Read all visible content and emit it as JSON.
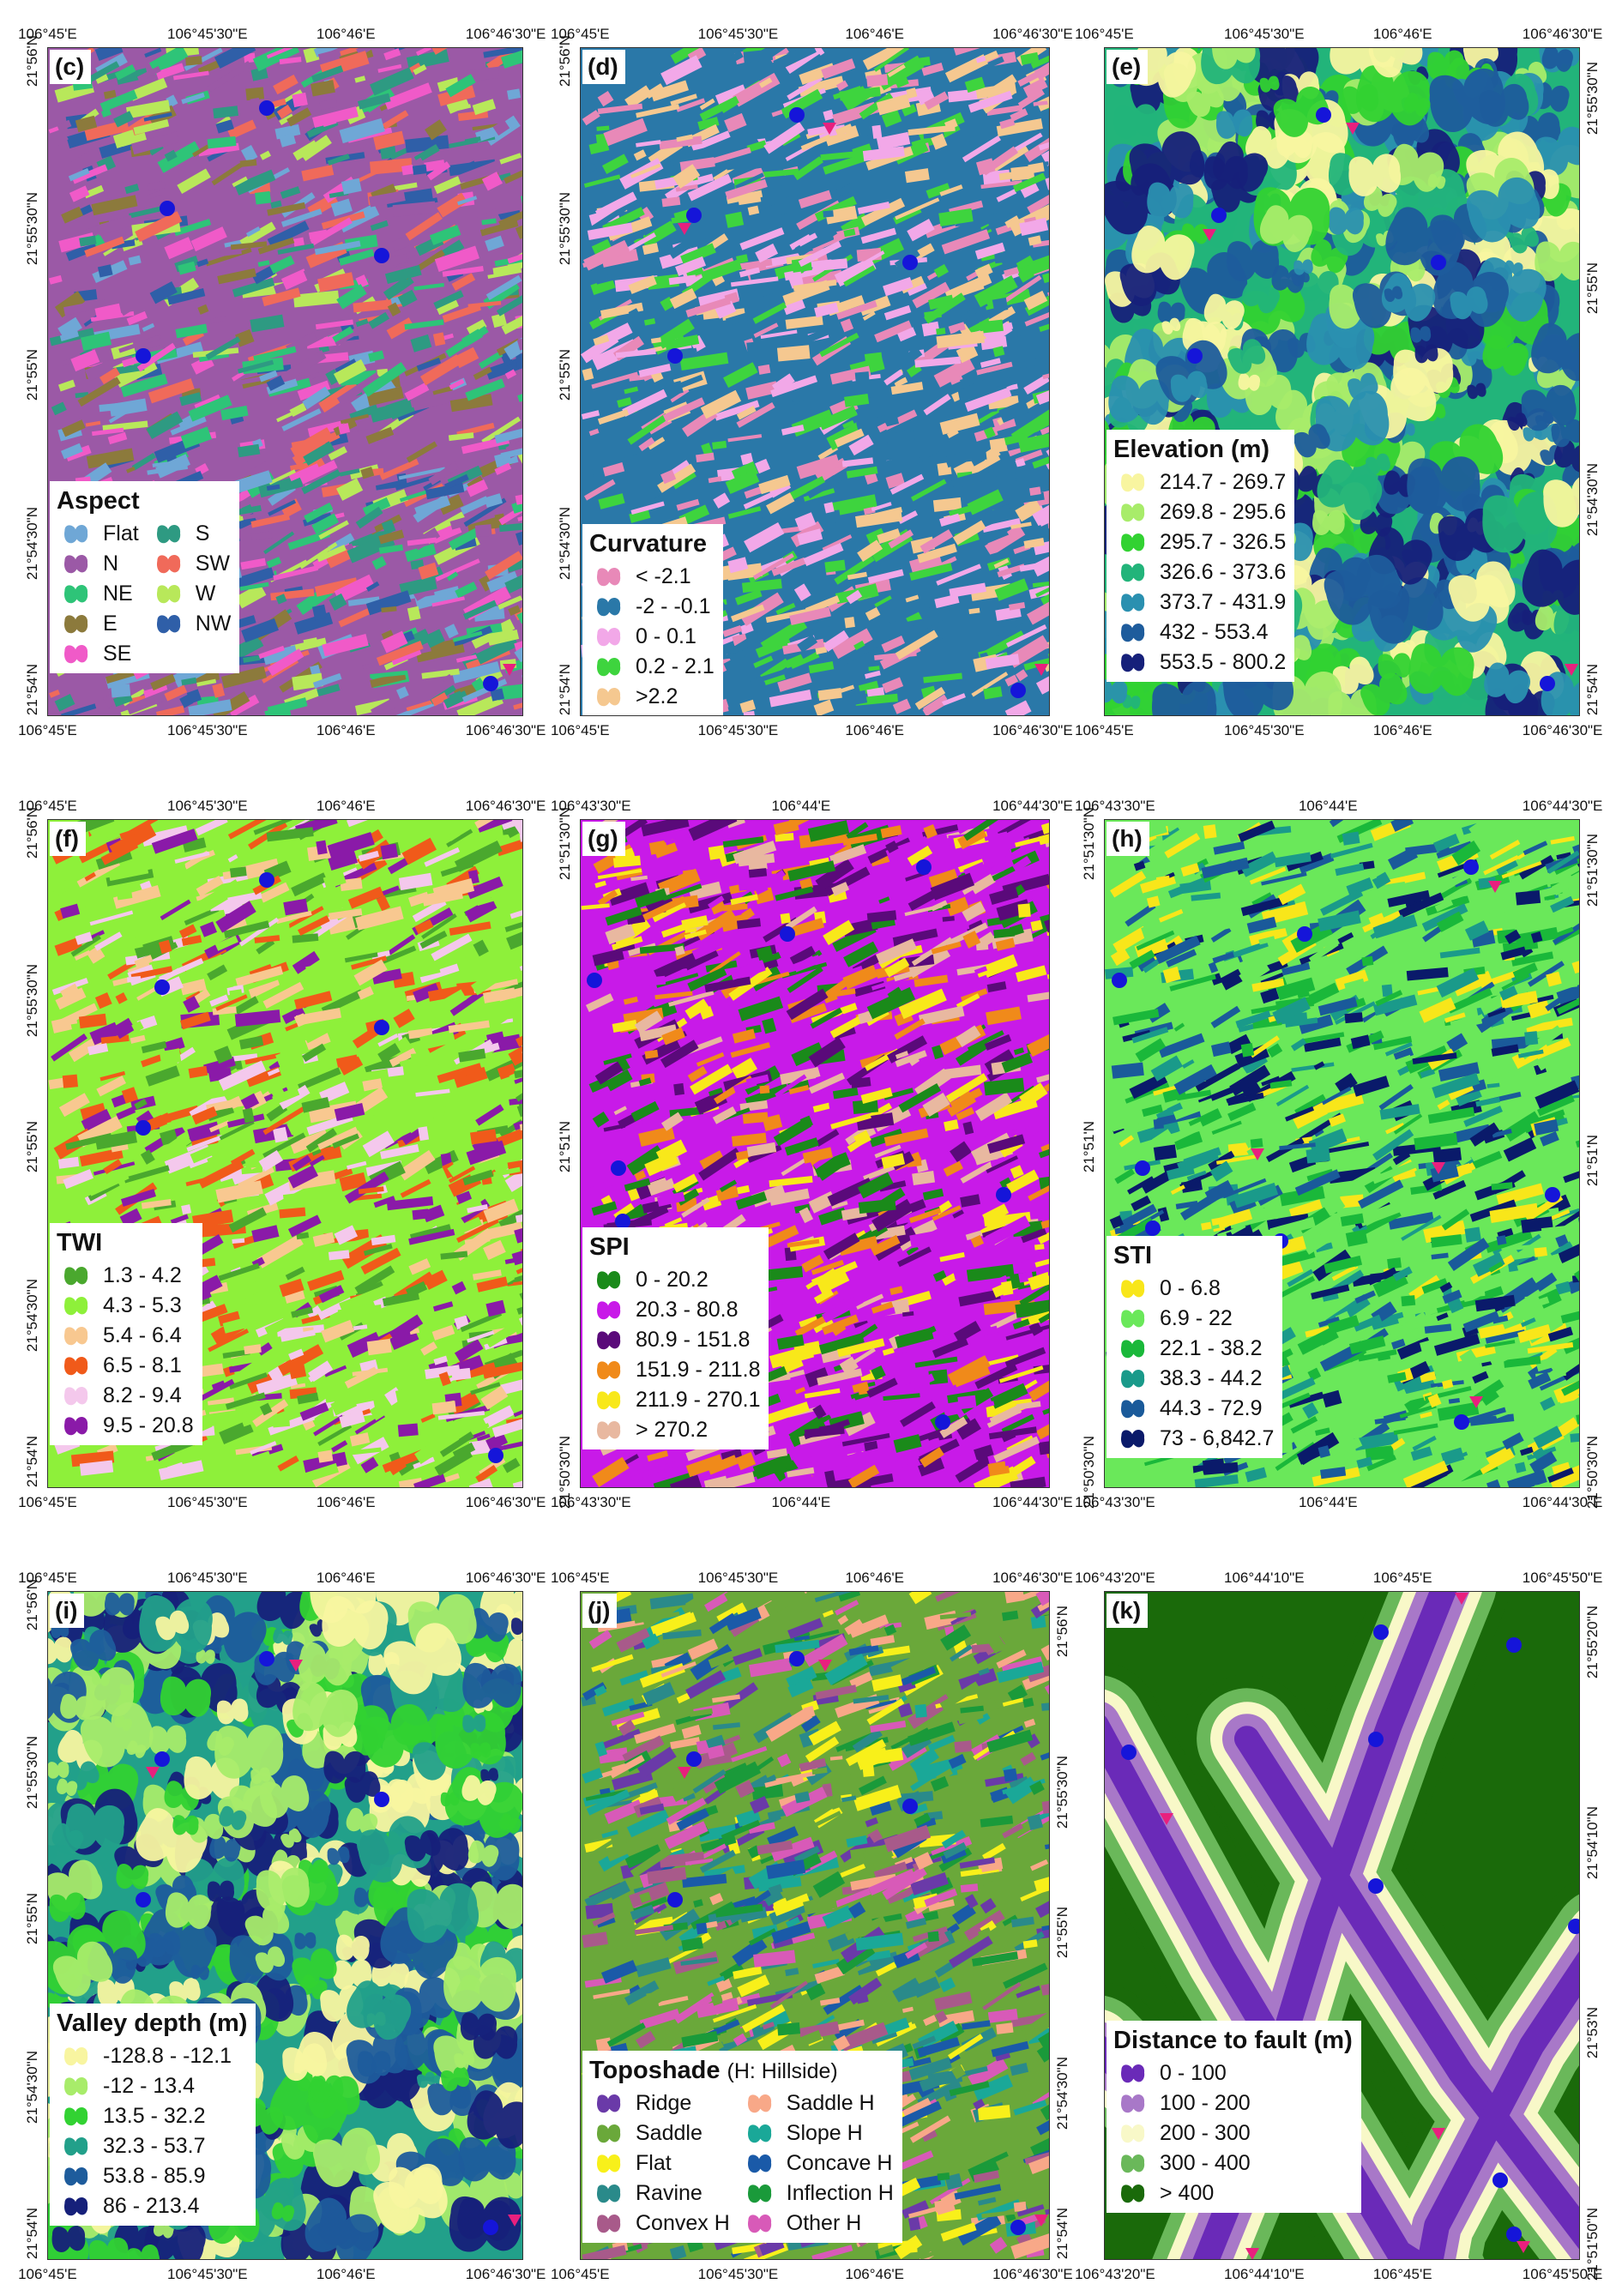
{
  "figure": {
    "points": {
      "count_marker_color": "#1515d9",
      "triangle_marker_color": "#e8207e"
    },
    "panels": [
      {
        "id": "c",
        "label": "(c)",
        "legend_title": "Aspect",
        "legend_sub": "",
        "cols": 2,
        "classes": [
          {
            "label": "Flat",
            "color": "#6fa7d6"
          },
          {
            "label": "N",
            "color": "#9b59a6"
          },
          {
            "label": "NE",
            "color": "#2ec478"
          },
          {
            "label": "E",
            "color": "#8c7a3c"
          },
          {
            "label": "SE",
            "color": "#f05ac8"
          },
          {
            "label": "S",
            "color": "#2e9a82"
          },
          {
            "label": "SW",
            "color": "#f06a5a"
          },
          {
            "label": "W",
            "color": "#b8e85a"
          },
          {
            "label": "NW",
            "color": "#2f5fa8"
          }
        ],
        "top_ticks": [
          "106°45'E",
          "106°45'30\"E",
          "106°46'E",
          "106°46'30\"E"
        ],
        "bottom_ticks": [
          "106°45'E",
          "106°45'30\"E",
          "106°46'E",
          "106°46'30\"E"
        ],
        "left_ticks": [
          "21°56'N",
          "21°55'30\"N",
          "21°55'N",
          "21°54'30\"N",
          "21°54'N"
        ],
        "right_ticks": [],
        "style": "speckle"
      },
      {
        "id": "d",
        "label": "(d)",
        "legend_title": "Curvature",
        "legend_sub": "",
        "cols": 1,
        "classes": [
          {
            "label": "< -2.1",
            "color": "#e889b8"
          },
          {
            "label": "-2 - -0.1",
            "color": "#2a78a8"
          },
          {
            "label": "0 - 0.1",
            "color": "#f2a8e8"
          },
          {
            "label": "0.2 - 2.1",
            "color": "#3ed43e"
          },
          {
            "label": ">2.2",
            "color": "#f5c890"
          }
        ],
        "top_ticks": [
          "106°45'E",
          "106°45'30\"E",
          "106°46'E",
          "106°46'30\"E"
        ],
        "bottom_ticks": [
          "106°45'E",
          "106°45'30\"E",
          "106°46'E",
          "106°46'30\"E"
        ],
        "left_ticks": [
          "21°56'N",
          "21°55'30\"N",
          "21°55'N",
          "21°54'30\"N",
          "21°54'N"
        ],
        "right_ticks": [],
        "style": "speckle"
      },
      {
        "id": "e",
        "label": "(e)",
        "legend_title": "Elevation (m)",
        "legend_sub": "",
        "cols": 1,
        "classes": [
          {
            "label": "214.7 - 269.7",
            "color": "#f8f5a0"
          },
          {
            "label": "269.8 - 295.6",
            "color": "#a8ec6a"
          },
          {
            "label": "295.7 - 326.5",
            "color": "#32d232"
          },
          {
            "label": "326.6 - 373.6",
            "color": "#22b47a"
          },
          {
            "label": "373.7 - 431.9",
            "color": "#2a90b0"
          },
          {
            "label": "432 - 553.4",
            "color": "#1e5c9c"
          },
          {
            "label": "553.5 - 800.2",
            "color": "#16207a"
          }
        ],
        "top_ticks": [
          "106°45'E",
          "106°45'30\"E",
          "106°46'E",
          "106°46'30\"E"
        ],
        "bottom_ticks": [
          "106°45'E",
          "106°45'30\"E",
          "106°46'E",
          "106°46'30\"E"
        ],
        "left_ticks": [],
        "right_ticks": [
          "21°55'30\"N",
          "21°55'N",
          "21°54'30\"N",
          "21°54'N"
        ],
        "style": "smooth"
      },
      {
        "id": "f",
        "label": "(f)",
        "legend_title": "TWI",
        "legend_sub": "",
        "cols": 1,
        "classes": [
          {
            "label": "1.3 - 4.2",
            "color": "#4aa82e"
          },
          {
            "label": "4.3 - 5.3",
            "color": "#8ef03a"
          },
          {
            "label": "5.4 - 6.4",
            "color": "#f8c890"
          },
          {
            "label": "6.5 - 8.1",
            "color": "#f05a1a"
          },
          {
            "label": "8.2 - 9.4",
            "color": "#f4c8ec"
          },
          {
            "label": "9.5 - 20.8",
            "color": "#8a1aa8"
          }
        ],
        "top_ticks": [
          "106°45'E",
          "106°45'30\"E",
          "106°46'E",
          "106°46'30\"E"
        ],
        "bottom_ticks": [
          "106°45'E",
          "106°45'30\"E",
          "106°46'E",
          "106°46'30\"E"
        ],
        "left_ticks": [
          "21°56'N",
          "21°55'30\"N",
          "21°55'N",
          "21°54'30\"N",
          "21°54'N"
        ],
        "right_ticks": [],
        "style": "speckle"
      },
      {
        "id": "g",
        "label": "(g)",
        "legend_title": "SPI",
        "legend_sub": "",
        "cols": 1,
        "classes": [
          {
            "label": "0 - 20.2",
            "color": "#1a8a1a"
          },
          {
            "label": "20.3 - 80.8",
            "color": "#c81ae8"
          },
          {
            "label": "80.9 - 151.8",
            "color": "#5a0a7a"
          },
          {
            "label": "151.9 - 211.8",
            "color": "#f08a1a"
          },
          {
            "label": "211.9 - 270.1",
            "color": "#f8e81a"
          },
          {
            "label": "> 270.2",
            "color": "#e8b8a0"
          }
        ],
        "top_ticks": [
          "106°43'30\"E",
          "106°44'E",
          "106°44'30\"E"
        ],
        "bottom_ticks": [
          "106°43'30\"E",
          "106°44'E",
          "106°44'30\"E"
        ],
        "left_ticks": [
          "21°51'30\"N",
          "21°51'N",
          "21°50'30\"N"
        ],
        "right_ticks": [],
        "style": "speckle"
      },
      {
        "id": "h",
        "label": "(h)",
        "legend_title": "STI",
        "legend_sub": "",
        "cols": 1,
        "classes": [
          {
            "label": "0 - 6.8",
            "color": "#f8e61a"
          },
          {
            "label": "6.9 - 22",
            "color": "#6ae85a"
          },
          {
            "label": "22.1 - 38.2",
            "color": "#1ab83a"
          },
          {
            "label": "38.3 - 44.2",
            "color": "#1a9a8a"
          },
          {
            "label": "44.3 - 72.9",
            "color": "#1a5a9a"
          },
          {
            "label": "73 - 6,842.7",
            "color": "#0a1a6a"
          }
        ],
        "top_ticks": [
          "106°43'30\"E",
          "106°44'E",
          "106°44'30\"E"
        ],
        "bottom_ticks": [
          "106°43'30\"E",
          "106°44'E",
          "106°44'30\"E"
        ],
        "left_ticks": [
          "21°51'30\"N",
          "21°51'N",
          "21°50'30\"N"
        ],
        "right_ticks": [
          "21°51'30\"N",
          "21°51'N",
          "21°50'30\"N"
        ],
        "style": "speckle"
      },
      {
        "id": "i",
        "label": "(i)",
        "legend_title": "Valley depth (m)",
        "legend_sub": "",
        "cols": 1,
        "classes": [
          {
            "label": "-128.8 - -12.1",
            "color": "#f8f5a0"
          },
          {
            "label": "-12 - 13.4",
            "color": "#a8ec6a"
          },
          {
            "label": "13.5 - 32.2",
            "color": "#32d232"
          },
          {
            "label": "32.3 - 53.7",
            "color": "#22a08a"
          },
          {
            "label": "53.8 - 85.9",
            "color": "#1e5c9c"
          },
          {
            "label": "86 - 213.4",
            "color": "#16207a"
          }
        ],
        "top_ticks": [
          "106°45'E",
          "106°45'30\"E",
          "106°46'E",
          "106°46'30\"E"
        ],
        "bottom_ticks": [
          "106°45'E",
          "106°45'30\"E",
          "106°46'E",
          "106°46'30\"E"
        ],
        "left_ticks": [
          "21°56'N",
          "21°55'30\"N",
          "21°55'N",
          "21°54'30\"N",
          "21°54'N"
        ],
        "right_ticks": [],
        "style": "smooth"
      },
      {
        "id": "j",
        "label": "(j)",
        "legend_title": "Toposhade",
        "legend_sub": "(H: Hillside)",
        "cols": 2,
        "classes": [
          {
            "label": "Ridge",
            "color": "#6a3aa8"
          },
          {
            "label": "Saddle",
            "color": "#6aa83a"
          },
          {
            "label": "Flat",
            "color": "#f8f01a"
          },
          {
            "label": "Ravine",
            "color": "#2a8a8a"
          },
          {
            "label": "Convex H",
            "color": "#a85a8a"
          },
          {
            "label": "Saddle H",
            "color": "#f8a888"
          },
          {
            "label": "Slope H",
            "color": "#1aa898"
          },
          {
            "label": "Concave H",
            "color": "#1a5aa8"
          },
          {
            "label": "Inflection H",
            "color": "#1a9a3a"
          },
          {
            "label": "Other H",
            "color": "#d85ab8"
          }
        ],
        "top_ticks": [
          "106°45'E",
          "106°45'30\"E",
          "106°46'E",
          "106°46'30\"E"
        ],
        "bottom_ticks": [
          "106°45'E",
          "106°45'30\"E",
          "106°46'E",
          "106°46'30\"E"
        ],
        "left_ticks": [],
        "right_ticks": [
          "21°56'N",
          "21°55'30\"N",
          "21°55'N",
          "21°54'30\"N",
          "21°54'N"
        ],
        "style": "speckle"
      },
      {
        "id": "k",
        "label": "(k)",
        "legend_title": "Distance to fault (m)",
        "legend_sub": "",
        "cols": 1,
        "classes": [
          {
            "label": "0 - 100",
            "color": "#6a2ab8"
          },
          {
            "label": "100 - 200",
            "color": "#a878c8"
          },
          {
            "label": "200 - 300",
            "color": "#f8f8c8"
          },
          {
            "label": "300 - 400",
            "color": "#6ab85a"
          },
          {
            "label": "> 400",
            "color": "#1a6a0a"
          }
        ],
        "top_ticks": [
          "106°43'20\"E",
          "106°44'10\"E",
          "106°45'E",
          "106°45'50\"E"
        ],
        "bottom_ticks": [
          "106°43'20\"E",
          "106°44'10\"E",
          "106°45'E",
          "106°45'50\"E"
        ],
        "left_ticks": [],
        "right_ticks": [
          "21°55'20\"N",
          "21°54'10\"N",
          "21°53'N",
          "21°51'50\"N"
        ],
        "style": "fault"
      }
    ]
  }
}
